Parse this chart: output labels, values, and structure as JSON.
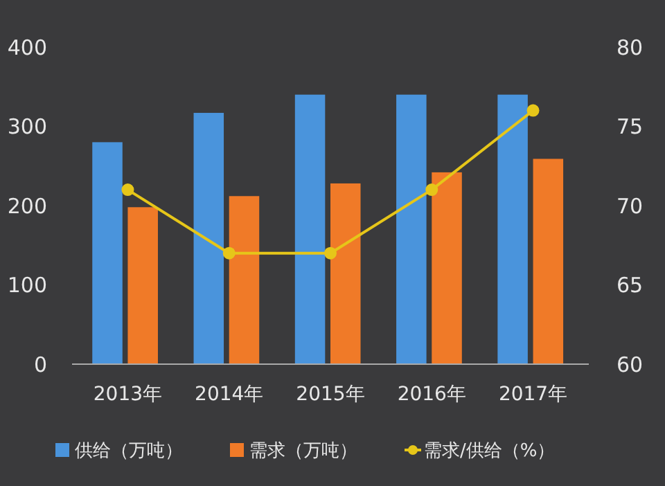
{
  "chart_data": {
    "type": "bar",
    "categories": [
      "2013年",
      "2014年",
      "2015年",
      "2016年",
      "2017年"
    ],
    "series": [
      {
        "name": "供给（万吨）",
        "color": "#4a94dc",
        "values": [
          280,
          317,
          340,
          340,
          340
        ]
      },
      {
        "name": "需求（万吨）",
        "color": "#f07a28",
        "values": [
          198,
          212,
          228,
          242,
          259
        ]
      },
      {
        "name": "需求/供给（%）",
        "type": "line",
        "axis": "y2",
        "color": "#e6c619",
        "marker": "circle",
        "values": [
          71,
          67,
          67,
          71,
          76
        ]
      }
    ],
    "ylim": [
      0,
      400
    ],
    "yticks": [
      0,
      100,
      200,
      300,
      400
    ],
    "y2lim": [
      60,
      80
    ],
    "y2ticks": [
      60,
      65,
      70,
      75,
      80
    ],
    "legend": "bottom"
  }
}
